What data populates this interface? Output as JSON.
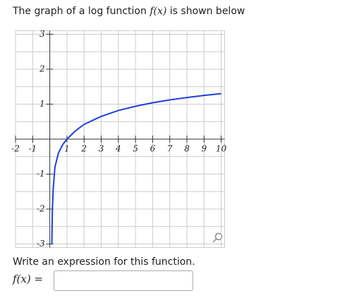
{
  "question": {
    "prefix": "The graph of a log function ",
    "func": "f(x)",
    "suffix": " is shown below"
  },
  "chart_data": {
    "type": "line",
    "x": [
      0.12,
      0.15,
      0.2,
      0.3,
      0.5,
      0.75,
      1,
      1.5,
      2,
      3,
      4,
      5,
      6,
      7,
      8,
      9,
      10
    ],
    "values": [
      -3,
      -2,
      -1.4,
      -0.8,
      -0.4,
      -0.16,
      0,
      0.24,
      0.42,
      0.65,
      0.82,
      0.94,
      1.04,
      1.12,
      1.19,
      1.25,
      1.3
    ],
    "color": "#1f3fd8",
    "xlim": [
      -2,
      10.2
    ],
    "ylim": [
      -3.1,
      3.1
    ],
    "xticks": [
      -2,
      -1,
      1,
      2,
      3,
      4,
      5,
      6,
      7,
      8,
      9,
      10
    ],
    "yticks": [
      -3,
      -2,
      -1,
      1,
      2,
      3
    ],
    "y_minor_grid": [
      -2.5,
      -1.5,
      -0.5,
      0.5,
      1.5,
      2.5
    ],
    "grid": true
  },
  "prompt": "Write an expression for this function.",
  "answer": {
    "label": "f(x) ="
  }
}
